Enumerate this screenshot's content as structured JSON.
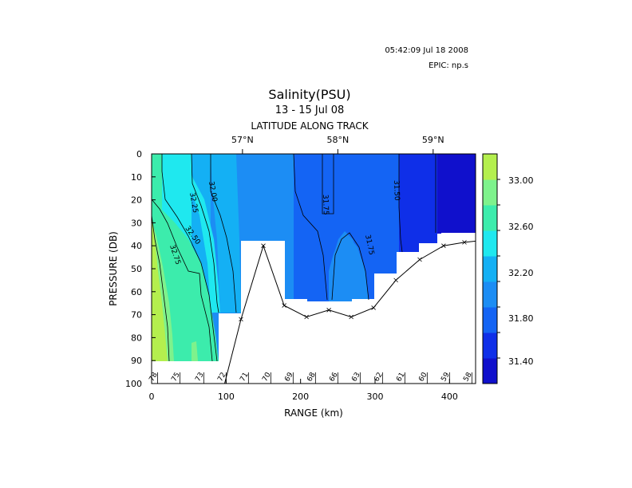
{
  "header": {
    "timestamp": "05:42:09 Jul 18 2008",
    "epic": "EPIC:  np.s"
  },
  "chart_data": {
    "type": "heatmap",
    "title": "Salinity(PSU)",
    "subtitle": "13 - 15 Jul 08",
    "top_axis_label": "LATITUDE ALONG TRACK",
    "top_ticks": [
      {
        "label": "57°N",
        "x": 122
      },
      {
        "label": "58°N",
        "x": 250
      },
      {
        "label": "59°N",
        "x": 378
      }
    ],
    "xlabel": "RANGE (km)",
    "ylabel": "PRESSURE (DB)",
    "xlim": [
      0,
      435
    ],
    "ylim": [
      0,
      100
    ],
    "x_ticks": [
      0,
      100,
      200,
      300,
      400
    ],
    "y_ticks": [
      0,
      10,
      20,
      30,
      40,
      50,
      60,
      70,
      80,
      90,
      100
    ],
    "colorbar": {
      "ticks": [
        "33.00",
        "32.60",
        "32.20",
        "31.80",
        "31.40"
      ],
      "bands": [
        "#1010cc",
        "#0f2fe8",
        "#1464f4",
        "#1c8df4",
        "#14b0f4",
        "#1fe8ef",
        "#3cecac",
        "#7ef28c",
        "#b4ef4e"
      ]
    },
    "contour_labels": [
      "32.75",
      "32.50",
      "32.25",
      "32.00",
      "31.75",
      "31.75",
      "31.50"
    ],
    "stations": [
      {
        "label": "78",
        "x": 8
      },
      {
        "label": "75",
        "x": 38
      },
      {
        "label": "73",
        "x": 70
      },
      {
        "label": "72",
        "x": 100
      },
      {
        "label": "71",
        "x": 130
      },
      {
        "label": "70",
        "x": 160
      },
      {
        "label": "69",
        "x": 190
      },
      {
        "label": "68",
        "x": 220
      },
      {
        "label": "66",
        "x": 250
      },
      {
        "label": "63",
        "x": 280
      },
      {
        "label": "62",
        "x": 310
      },
      {
        "label": "61",
        "x": 340
      },
      {
        "label": "60",
        "x": 370
      },
      {
        "label": "59",
        "x": 400
      },
      {
        "label": "58",
        "x": 430
      }
    ],
    "bottom_profile": [
      {
        "x": 98,
        "y": 100
      },
      {
        "x": 120,
        "y": 72
      },
      {
        "x": 150,
        "y": 40
      },
      {
        "x": 178,
        "y": 66
      },
      {
        "x": 208,
        "y": 71
      },
      {
        "x": 238,
        "y": 68
      },
      {
        "x": 268,
        "y": 71
      },
      {
        "x": 298,
        "y": 67
      },
      {
        "x": 328,
        "y": 55
      },
      {
        "x": 360,
        "y": 46
      },
      {
        "x": 392,
        "y": 40
      },
      {
        "x": 420,
        "y": 38.5
      },
      {
        "x": 435,
        "y": 38
      }
    ]
  }
}
